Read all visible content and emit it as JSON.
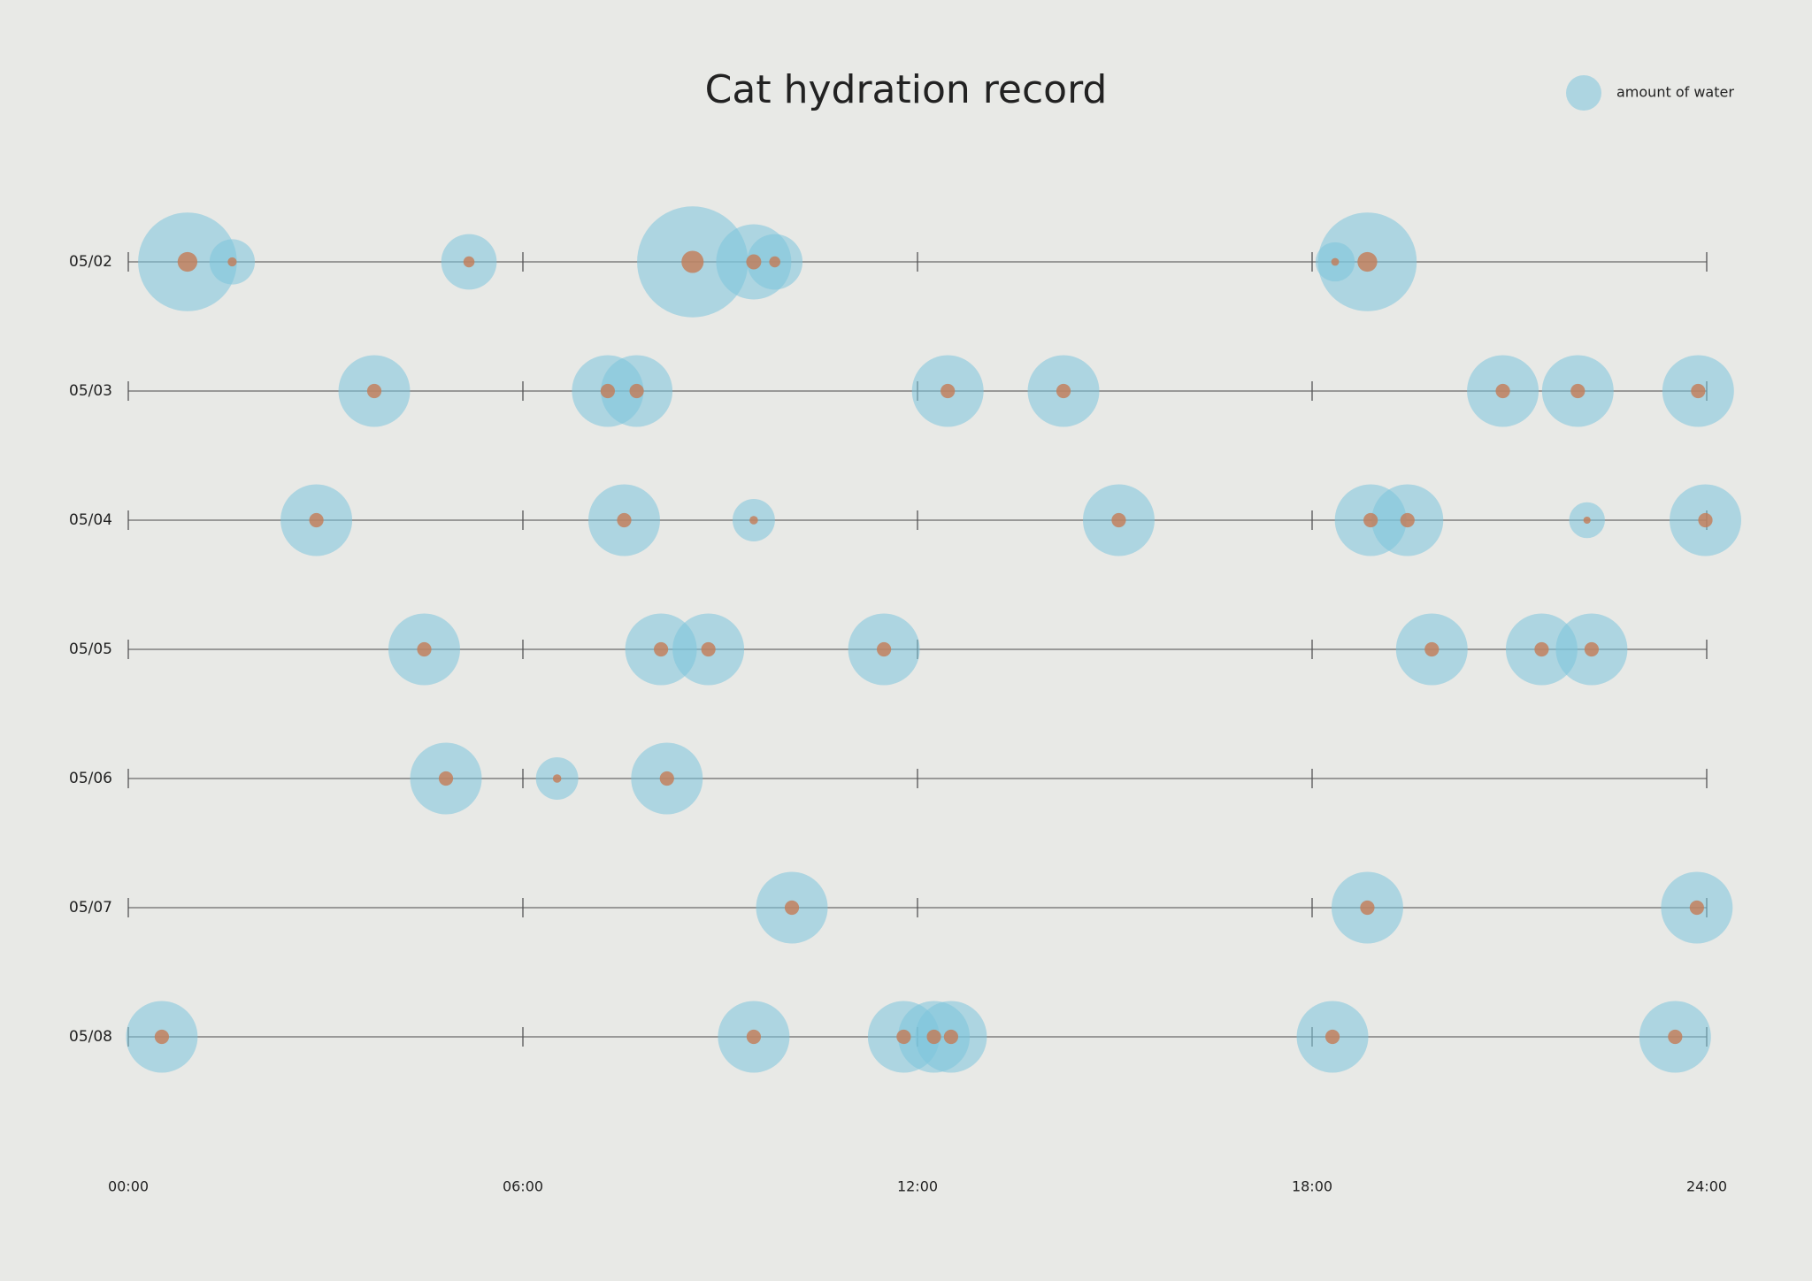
{
  "chart_data": {
    "type": "bubble-timeline",
    "title": "Cat hydration record",
    "legend": "amount of water",
    "legend_corner": "top-right",
    "color": "#7cc4dd",
    "dot_color": "#c47a55",
    "xlim": [
      0,
      24
    ],
    "xticks": [
      {
        "value": 0,
        "label": "00:00"
      },
      {
        "value": 6,
        "label": "06:00"
      },
      {
        "value": 12,
        "label": "12:00"
      },
      {
        "value": 18,
        "label": "18:00"
      },
      {
        "value": 24,
        "label": "24:00"
      }
    ],
    "series": [
      {
        "name": "05/02",
        "x": [
          0.9,
          1.58,
          5.18,
          8.58,
          9.51,
          9.83,
          18.35,
          18.84
        ],
        "sizes": [
          19,
          4,
          6,
          24,
          11,
          6,
          3,
          19
        ]
      },
      {
        "name": "05/03",
        "x": [
          3.74,
          7.29,
          7.73,
          12.46,
          14.22,
          20.9,
          22.04,
          23.87
        ],
        "sizes": [
          10,
          10,
          10,
          10,
          10,
          10,
          10,
          10
        ]
      },
      {
        "name": "05/04",
        "x": [
          2.86,
          7.54,
          9.51,
          15.06,
          18.89,
          19.45,
          22.18,
          23.98
        ],
        "sizes": [
          10,
          10,
          3.5,
          10,
          10,
          10,
          2.5,
          10
        ]
      },
      {
        "name": "05/05",
        "x": [
          4.5,
          8.1,
          8.82,
          11.49,
          19.82,
          21.49,
          22.25
        ],
        "sizes": [
          10,
          10,
          10,
          10,
          10,
          10,
          10
        ]
      },
      {
        "name": "05/06",
        "x": [
          4.83,
          6.52,
          8.19
        ],
        "sizes": [
          10,
          3.5,
          10
        ]
      },
      {
        "name": "05/07",
        "x": [
          10.09,
          18.84,
          23.85
        ],
        "sizes": [
          10,
          10,
          10
        ]
      },
      {
        "name": "05/08",
        "x": [
          0.51,
          9.51,
          11.79,
          12.25,
          12.51,
          18.31,
          23.52
        ],
        "sizes": [
          10,
          10,
          10,
          10,
          10,
          10,
          10
        ]
      }
    ]
  }
}
